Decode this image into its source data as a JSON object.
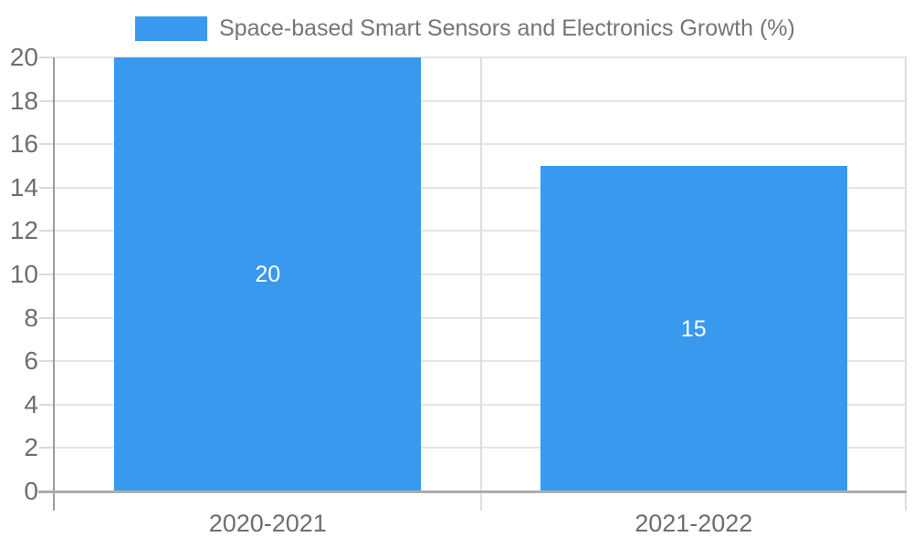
{
  "chart_data": {
    "type": "bar",
    "title": "",
    "legend": {
      "label": "Space-based Smart Sensors and Electronics Growth (%)",
      "position": "top"
    },
    "categories": [
      "2020-2021",
      "2021-2022"
    ],
    "series": [
      {
        "name": "Space-based Smart Sensors and Electronics Growth (%)",
        "values": [
          20,
          15
        ]
      }
    ],
    "bar_labels": [
      "20",
      "15"
    ],
    "xlabel": "",
    "ylabel": "",
    "ylim": [
      0,
      20
    ],
    "y_ticks": [
      0,
      2,
      4,
      6,
      8,
      10,
      12,
      14,
      16,
      18,
      20
    ],
    "grid": true,
    "colors": {
      "bar": "#3899ee",
      "bar_label_text": "#ffffff",
      "gridline": "#e5e5e5",
      "vertical_divider": "#dedede",
      "tick": "#dadada",
      "x_axis_line": "#adadad",
      "y_axis_line": "#9b9b9b",
      "axis_label_text": "#6e6e6e",
      "legend_text": "#757575"
    }
  }
}
